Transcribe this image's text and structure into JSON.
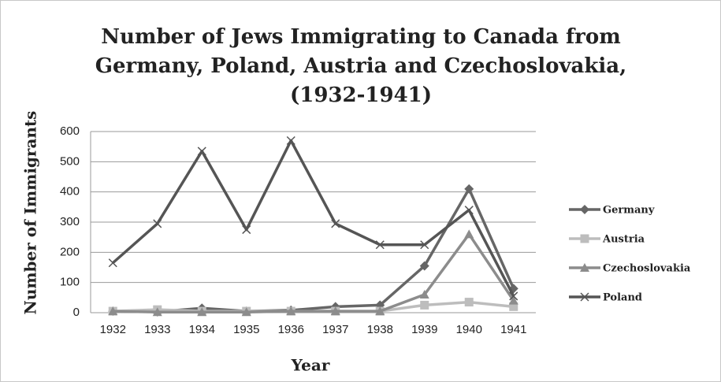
{
  "chart_data": {
    "type": "line",
    "title": [
      "Number of Jews Immigrating to Canada from",
      "Germany, Poland, Austria and Czechoslovakia,",
      "(1932-1941)"
    ],
    "x_label": "Year",
    "y_label": "Number of Immigrants",
    "categories": [
      "1932",
      "1933",
      "1934",
      "1935",
      "1936",
      "1937",
      "1938",
      "1939",
      "1940",
      "1941"
    ],
    "series": [
      {
        "name": "Germany",
        "color": "#666666",
        "marker": "diamond",
        "values": [
          5,
          3,
          15,
          5,
          8,
          20,
          25,
          155,
          410,
          80
        ]
      },
      {
        "name": "Austria",
        "color": "#bdbdbd",
        "marker": "square",
        "values": [
          5,
          10,
          5,
          5,
          5,
          5,
          5,
          25,
          35,
          20
        ]
      },
      {
        "name": "Czechoslovakia",
        "color": "#8c8c8c",
        "marker": "triangle",
        "values": [
          5,
          2,
          2,
          2,
          5,
          5,
          5,
          60,
          260,
          40
        ]
      },
      {
        "name": "Poland",
        "color": "#555555",
        "marker": "x",
        "values": [
          165,
          295,
          535,
          275,
          570,
          295,
          225,
          225,
          340,
          55
        ]
      }
    ],
    "ylim": [
      0,
      600
    ],
    "yticks": [
      0,
      100,
      200,
      300,
      400,
      500,
      600
    ],
    "grid": true,
    "legend": "right"
  }
}
